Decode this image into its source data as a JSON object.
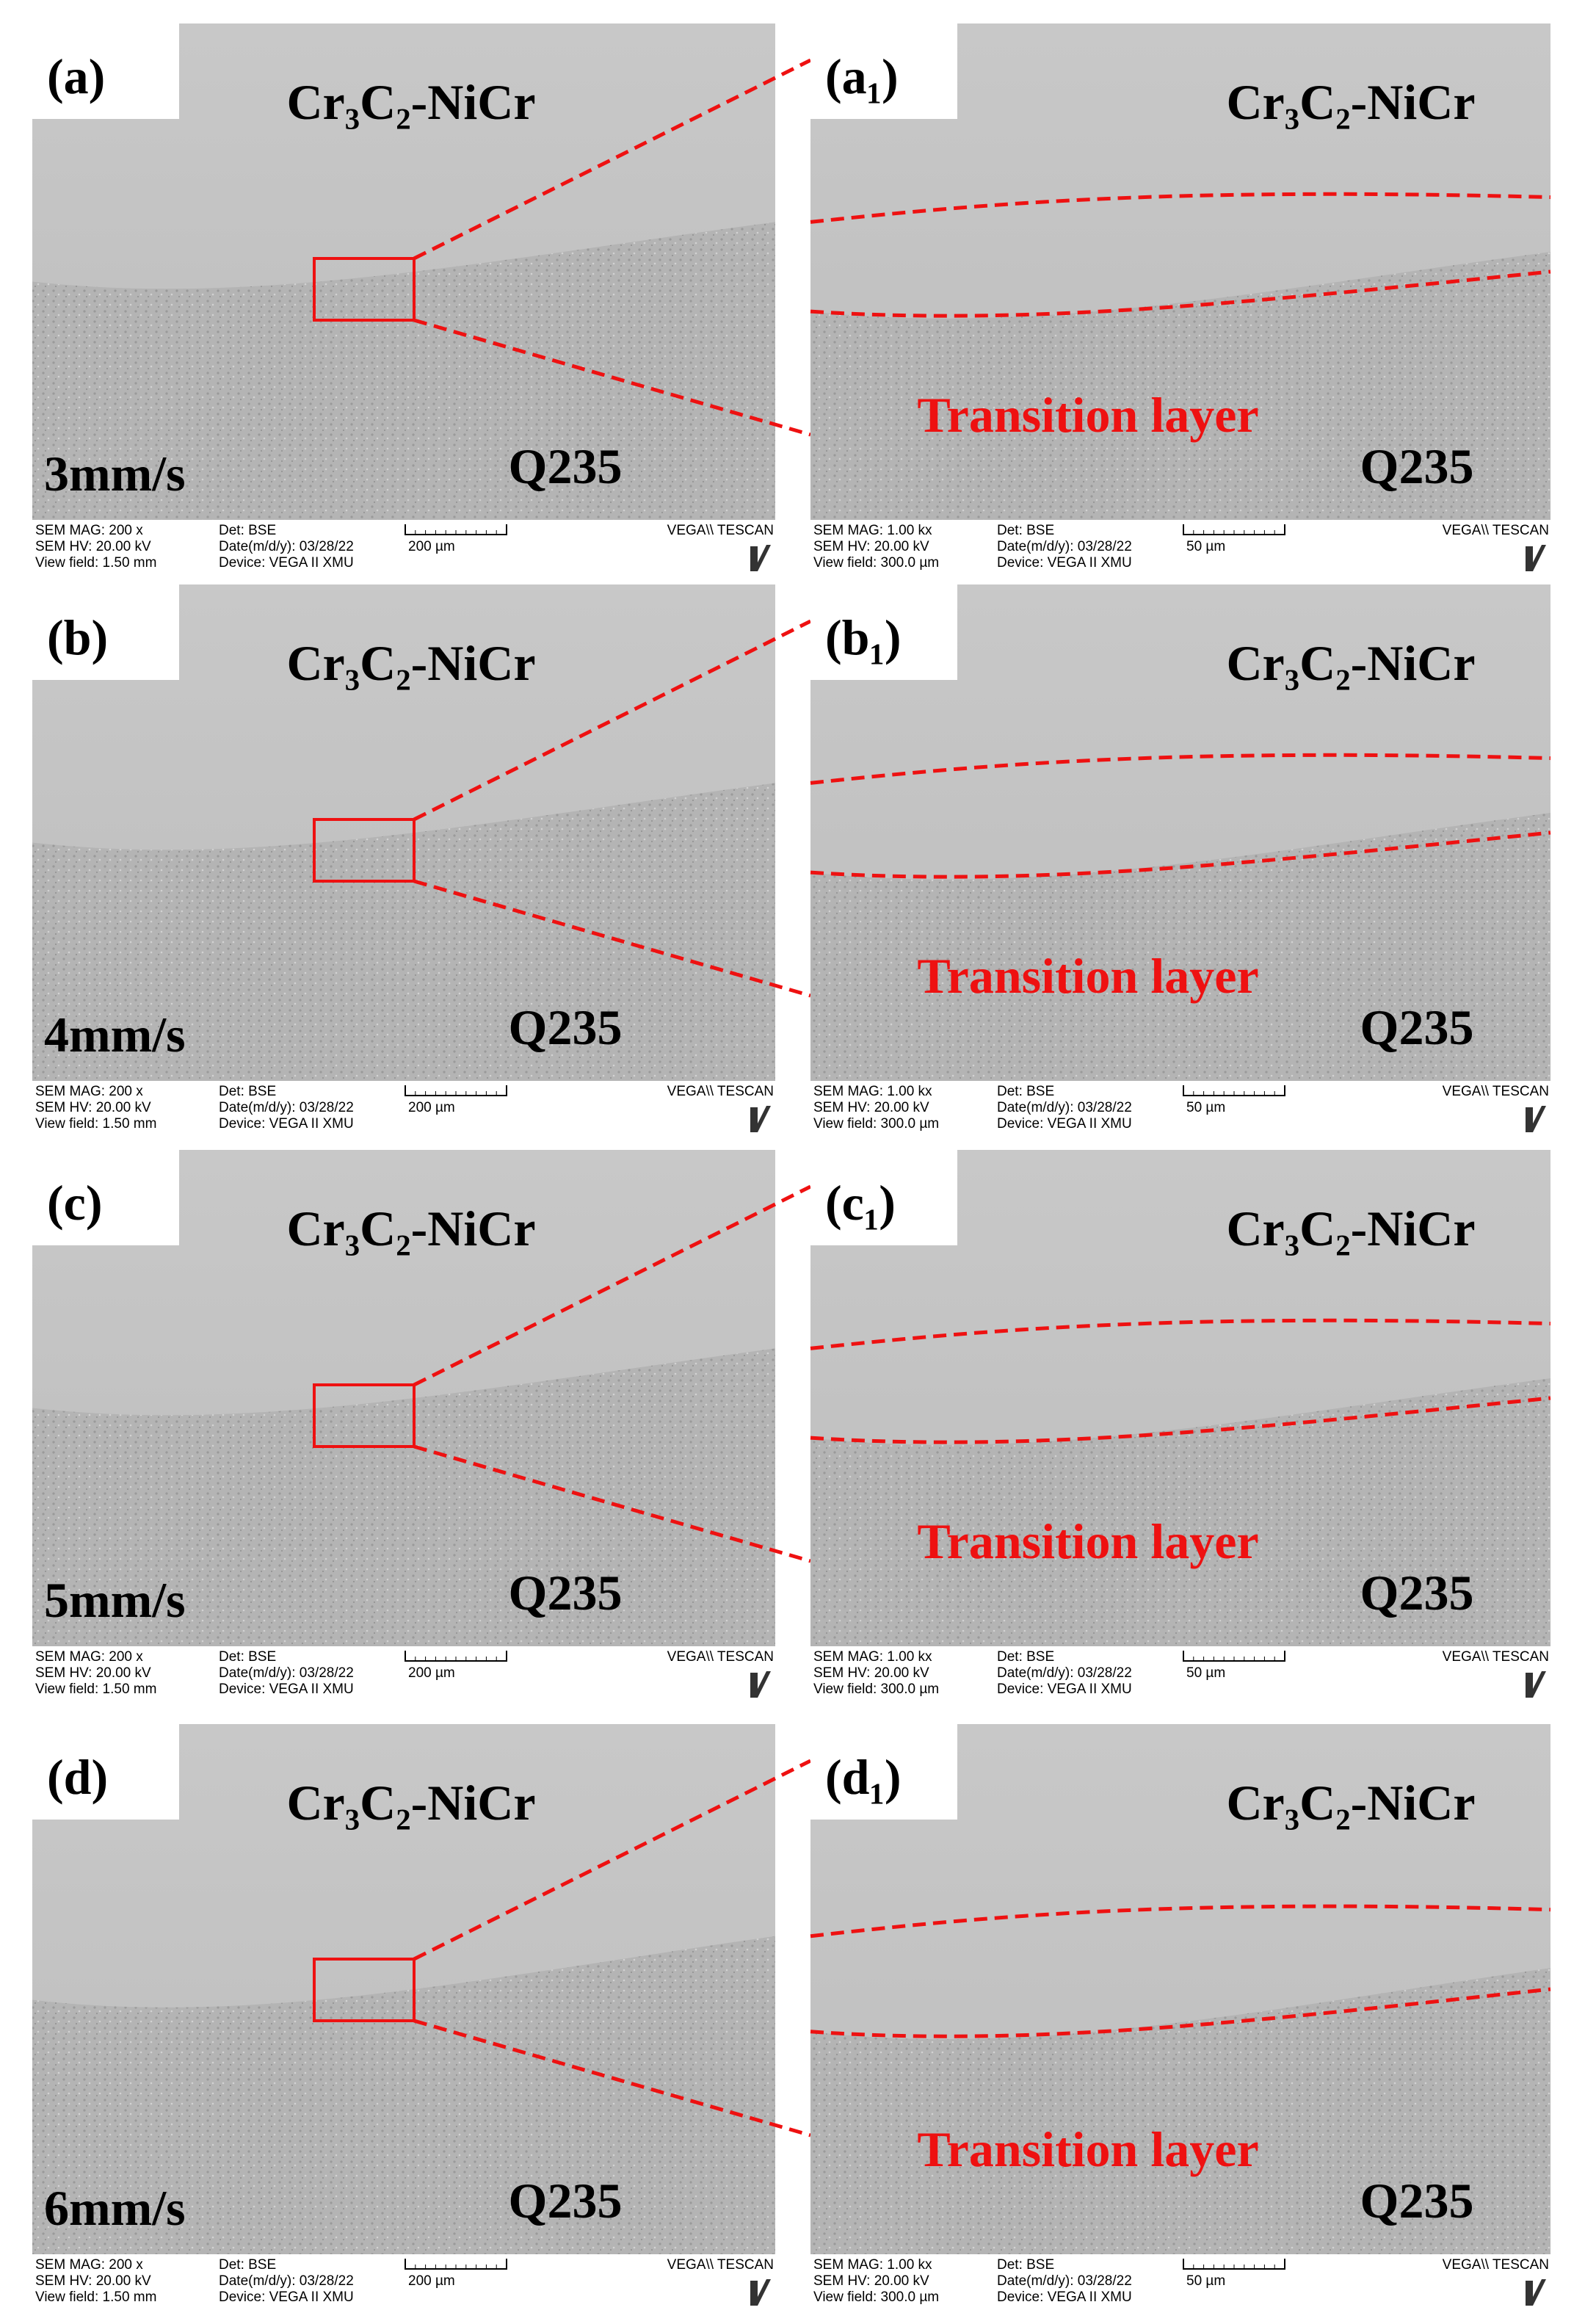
{
  "panels": [
    {
      "label": "(a)",
      "coating": "Cr₃C₂-NiCr",
      "substrate": "Q235",
      "speed": "3mm/s",
      "footer": {
        "mag": "SEM MAG: 200 x",
        "hv": "SEM HV: 20.00 kV",
        "view": "View field: 1.50 mm",
        "det": "Det: BSE",
        "date": "Date(m/d/y): 03/28/22",
        "device": "Device: VEGA II XMU",
        "scale": "200 µm",
        "brand": "VEGA\\\\ TESCAN"
      }
    },
    {
      "label": "(a₁)",
      "coating": "Cr₃C₂-NiCr",
      "substrate": "Q235",
      "transition": "Transition layer",
      "footer": {
        "mag": "SEM MAG: 1.00 kx",
        "hv": "SEM HV: 20.00 kV",
        "view": "View field: 300.0 µm",
        "det": "Det: BSE",
        "date": "Date(m/d/y): 03/28/22",
        "device": "Device: VEGA II XMU",
        "scale": "50 µm",
        "brand": "VEGA\\\\ TESCAN"
      }
    },
    {
      "label": "(b)",
      "coating": "Cr₃C₂-NiCr",
      "substrate": "Q235",
      "speed": "4mm/s",
      "footer": {
        "mag": "SEM MAG: 200 x",
        "hv": "SEM HV: 20.00 kV",
        "view": "View field: 1.50 mm",
        "det": "Det: BSE",
        "date": "Date(m/d/y): 03/28/22",
        "device": "Device: VEGA II XMU",
        "scale": "200 µm",
        "brand": "VEGA\\\\ TESCAN"
      }
    },
    {
      "label": "(b₁)",
      "coating": "Cr₃C₂-NiCr",
      "substrate": "Q235",
      "transition": "Transition layer",
      "footer": {
        "mag": "SEM MAG: 1.00 kx",
        "hv": "SEM HV: 20.00 kV",
        "view": "View field: 300.0 µm",
        "det": "Det: BSE",
        "date": "Date(m/d/y): 03/28/22",
        "device": "Device: VEGA II XMU",
        "scale": "50 µm",
        "brand": "VEGA\\\\ TESCAN"
      }
    },
    {
      "label": "(c)",
      "coating": "Cr₃C₂-NiCr",
      "substrate": "Q235",
      "speed": "5mm/s",
      "footer": {
        "mag": "SEM MAG: 200 x",
        "hv": "SEM HV: 20.00 kV",
        "view": "View field: 1.50 mm",
        "det": "Det: BSE",
        "date": "Date(m/d/y): 03/28/22",
        "device": "Device: VEGA II XMU",
        "scale": "200 µm",
        "brand": "VEGA\\\\ TESCAN"
      }
    },
    {
      "label": "(c₁)",
      "coating": "Cr₃C₂-NiCr",
      "substrate": "Q235",
      "transition": "Transition layer",
      "footer": {
        "mag": "SEM MAG: 1.00 kx",
        "hv": "SEM HV: 20.00 kV",
        "view": "View field: 300.0 µm",
        "det": "Det: BSE",
        "date": "Date(m/d/y): 03/28/22",
        "device": "Device: VEGA II XMU",
        "scale": "50 µm",
        "brand": "VEGA\\\\ TESCAN"
      }
    },
    {
      "label": "(d)",
      "coating": "Cr₃C₂-NiCr",
      "substrate": "Q235",
      "speed": "6mm/s",
      "footer": {
        "mag": "SEM MAG: 200 x",
        "hv": "SEM HV: 20.00 kV",
        "view": "View field: 1.50 mm",
        "det": "Det: BSE",
        "date": "Date(m/d/y): 03/28/22",
        "device": "Device: VEGA II XMU",
        "scale": "200 µm",
        "brand": "VEGA\\\\ TESCAN"
      }
    },
    {
      "label": "(d₁)",
      "coating": "Cr₃C₂-NiCr",
      "substrate": "Q235",
      "transition": "Transition layer",
      "footer": {
        "mag": "SEM MAG: 1.00 kx",
        "hv": "SEM HV: 20.00 kV",
        "view": "View field: 300.0 µm",
        "det": "Det: BSE",
        "date": "Date(m/d/y): 03/28/22",
        "device": "Device: VEGA II XMU",
        "scale": "50 µm",
        "brand": "VEGA\\\\ TESCAN"
      }
    }
  ]
}
